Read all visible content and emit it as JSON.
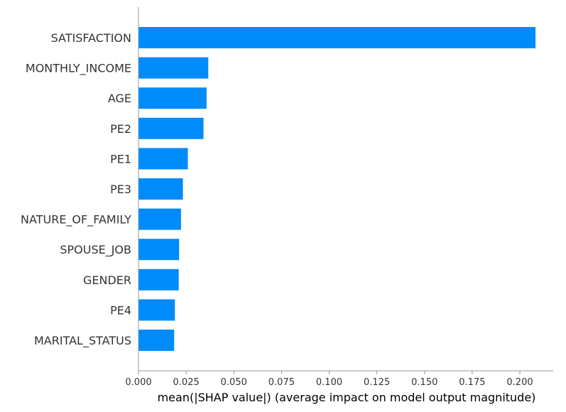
{
  "chart_data": {
    "type": "bar",
    "orientation": "horizontal",
    "categories": [
      "SATISFACTION",
      "MONTHLY_INCOME",
      "AGE",
      "PE2",
      "PE1",
      "PE3",
      "NATURE_OF_FAMILY",
      "SPOUSE_JOB",
      "GENDER",
      "PE4",
      "MARITAL_STATUS"
    ],
    "values": [
      0.2082,
      0.0366,
      0.0357,
      0.0341,
      0.0259,
      0.0233,
      0.0223,
      0.0213,
      0.0211,
      0.0191,
      0.0187
    ],
    "xlabel": "mean(|SHAP value|) (average impact on model output magnitude)",
    "ylabel": "",
    "title": "",
    "xlim": [
      0,
      0.2175
    ],
    "xticks": [
      "0.000",
      "0.025",
      "0.050",
      "0.075",
      "0.100",
      "0.125",
      "0.150",
      "0.175",
      "0.200"
    ],
    "grid": false,
    "bar_color": "#008bfb",
    "axis_color": "#999999"
  }
}
